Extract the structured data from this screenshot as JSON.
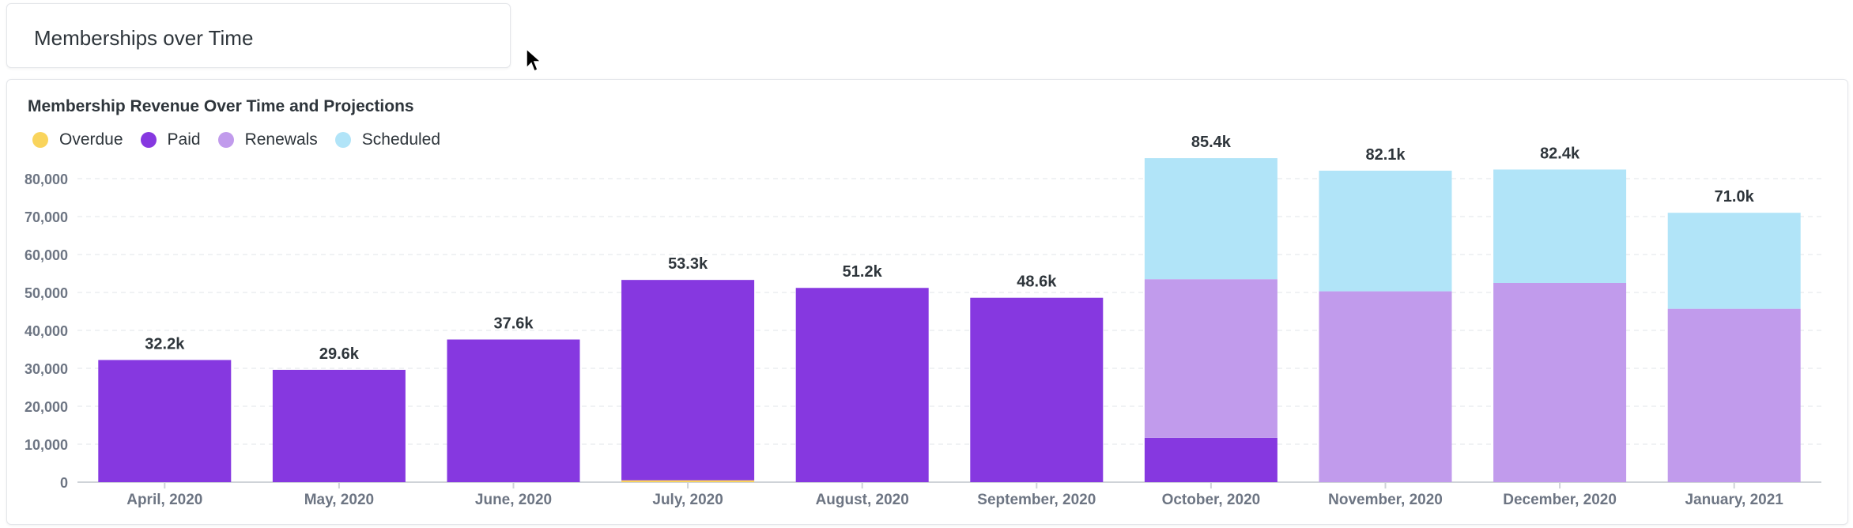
{
  "dashcard": {
    "title": "Memberships over Time"
  },
  "card": {
    "title": "Membership Revenue Over Time and Projections"
  },
  "legend": [
    {
      "label": "Overdue",
      "color": "#f9d45c"
    },
    {
      "label": "Paid",
      "color": "#8638e0"
    },
    {
      "label": "Renewals",
      "color": "#c19bec"
    },
    {
      "label": "Scheduled",
      "color": "#b1e4f8"
    }
  ],
  "chart_data": {
    "type": "bar",
    "stacked": true,
    "title": "Membership Revenue Over Time and Projections",
    "categories": [
      "April, 2020",
      "May, 2020",
      "June, 2020",
      "July, 2020",
      "August, 2020",
      "September, 2020",
      "October, 2020",
      "November, 2020",
      "December, 2020",
      "January, 2021"
    ],
    "series": [
      {
        "name": "Overdue",
        "color": "#f9d45c",
        "values": [
          0,
          0,
          0,
          500,
          0,
          0,
          0,
          0,
          0,
          0
        ]
      },
      {
        "name": "Paid",
        "color": "#8638e0",
        "values": [
          32200,
          29600,
          37600,
          52800,
          51200,
          48600,
          11700,
          0,
          0,
          0
        ]
      },
      {
        "name": "Renewals",
        "color": "#c19bec",
        "values": [
          0,
          0,
          0,
          0,
          0,
          0,
          41800,
          50300,
          52500,
          45700
        ]
      },
      {
        "name": "Scheduled",
        "color": "#b1e4f8",
        "values": [
          0,
          0,
          0,
          0,
          0,
          0,
          31900,
          31800,
          29900,
          25300
        ]
      }
    ],
    "totals_labels": [
      "32.2k",
      "29.6k",
      "37.6k",
      "53.3k",
      "51.2k",
      "48.6k",
      "85.4k",
      "82.1k",
      "82.4k",
      "71.0k"
    ],
    "y_ticks": [
      "0",
      "10,000",
      "20,000",
      "30,000",
      "40,000",
      "50,000",
      "60,000",
      "70,000",
      "80,000"
    ],
    "ylim": [
      0,
      85000
    ],
    "grid": true,
    "legend_position": "top-left"
  }
}
